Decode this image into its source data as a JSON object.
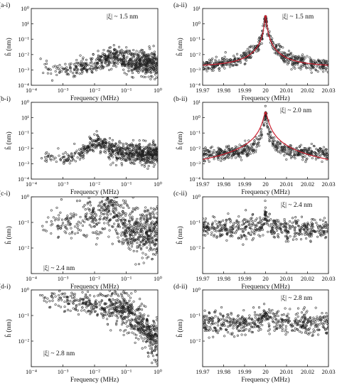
{
  "figure": {
    "x_label": "Frequency (MHz)",
    "y_label": "ĥ (nm)"
  },
  "chart_data": [
    {
      "panel": "(a-i)",
      "type": "scatter",
      "annotation": "|ξ| ~ 1.5 nm",
      "xlabel": "Frequency (MHz)",
      "ylabel": "ĥ (nm)",
      "x_scale": "log",
      "y_scale": "log",
      "xlim": [
        0.0001,
        1
      ],
      "ylim": [
        0.0001,
        10
      ],
      "x_ticks": [
        "10⁻⁴",
        "10⁻³",
        "10⁻²",
        "10⁻¹",
        "10⁰"
      ],
      "y_ticks": [
        "10⁰",
        "10¹",
        "10⁻¹",
        "10⁻²",
        "10⁻³",
        "10⁻⁴"
      ],
      "trend": {
        "x": [
          0.00025,
          0.001,
          0.003,
          0.01,
          0.02,
          0.035,
          0.05,
          0.1,
          0.3,
          1
        ],
        "y": [
          0.0015,
          0.0009,
          0.0012,
          0.0022,
          0.004,
          0.007,
          0.0065,
          0.004,
          0.003,
          0.0025
        ]
      },
      "spread_decades": 0.35,
      "density": "sparse-to-dense"
    },
    {
      "panel": "(a-ii)",
      "type": "scatter+line",
      "annotation": "|ξ| ~ 1.5 nm",
      "xlabel": "Frequency (MHz)",
      "ylabel": "ĥ (nm)",
      "x_scale": "linear",
      "y_scale": "log",
      "xlim": [
        19.97,
        20.03
      ],
      "ylim": [
        0.0001,
        10
      ],
      "x_ticks": [
        "19.97",
        "19.98",
        "19.99",
        "20",
        "20.01",
        "20.02",
        "20.03"
      ],
      "y_ticks": [
        "10¹",
        "10⁰",
        "10⁻¹",
        "10⁻²",
        "10⁻³",
        "10⁻⁴"
      ],
      "resonance": {
        "center": 20.0,
        "peak": 3.0,
        "baseline": 0.0015,
        "gamma": 0.0004
      },
      "fit_series": {
        "name": "",
        "color": "#cc2030",
        "peak": 3.0,
        "baseline": 0.0015,
        "gamma": 0.0004
      }
    },
    {
      "panel": "(b-i)",
      "type": "scatter",
      "annotation": "",
      "xlabel": "Frequency (MHz)",
      "ylabel": "ĥ (nm)",
      "x_scale": "log",
      "y_scale": "log",
      "xlim": [
        0.0001,
        1
      ],
      "ylim": [
        0.0001,
        10
      ],
      "x_ticks": [
        "10⁻⁴",
        "10⁻³",
        "10⁻²",
        "10⁻¹",
        "10⁰"
      ],
      "y_ticks": [
        "10⁰",
        "10¹",
        "10⁻¹",
        "10⁻²",
        "10⁻³",
        "10⁻⁴"
      ],
      "trend": {
        "x": [
          0.0002,
          0.001,
          0.003,
          0.006,
          0.01,
          0.013,
          0.02,
          0.05,
          0.1,
          1
        ],
        "y": [
          0.0025,
          0.0022,
          0.004,
          0.01,
          0.025,
          0.03,
          0.015,
          0.006,
          0.005,
          0.0045
        ]
      },
      "spread_decades": 0.3,
      "density": "sparse-to-dense"
    },
    {
      "panel": "(b-ii)",
      "type": "scatter+line",
      "annotation": "|ξ| ~ 2.0 nm",
      "xlabel": "Frequency (MHz)",
      "ylabel": "ĥ (nm)",
      "x_scale": "linear",
      "y_scale": "log",
      "xlim": [
        19.97,
        20.03
      ],
      "ylim": [
        0.0001,
        10
      ],
      "x_ticks": [
        "19.97",
        "19.98",
        "19.99",
        "20",
        "20.01",
        "20.02",
        "20.03"
      ],
      "y_ticks": [
        "10¹",
        "10⁰",
        "10⁻¹",
        "10⁻²",
        "10⁻³",
        "10⁻⁴"
      ],
      "resonance": {
        "center": 20.0,
        "peak": 2.0,
        "baseline": 0.004,
        "gamma": 0.0004
      },
      "fit_series": {
        "name": "",
        "color": "#cc2030",
        "peak": 2.0,
        "baseline": 0.0001,
        "gamma": 0.0009
      }
    },
    {
      "panel": "(c-i)",
      "type": "scatter",
      "annotation": "|ξ| ~ 2.4 nm",
      "xlabel": "Frequency (MHz)",
      "ylabel": "ĥ (nm)",
      "x_scale": "log",
      "y_scale": "log",
      "xlim": [
        0.0001,
        1
      ],
      "ylim": [
        0.001,
        1
      ],
      "x_ticks": [
        "10⁻⁴",
        "10⁻³",
        "10⁻²",
        "10⁻¹",
        "10⁰"
      ],
      "y_ticks": [
        "10⁰",
        "10⁻¹",
        "10⁻²"
      ],
      "trend": {
        "x": [
          0.0002,
          0.001,
          0.003,
          0.01,
          0.02,
          0.04,
          0.06,
          0.1,
          1
        ],
        "y": [
          0.08,
          0.1,
          0.1,
          0.15,
          0.25,
          0.4,
          0.15,
          0.05,
          0.04
        ]
      },
      "spread_decades": 0.45,
      "density": "sparse-to-dense"
    },
    {
      "panel": "(c-ii)",
      "type": "scatter",
      "annotation": "|ξ| ~ 2.4 nm",
      "xlabel": "Frequency (MHz)",
      "ylabel": "ĥ (nm)",
      "x_scale": "linear",
      "y_scale": "log",
      "xlim": [
        19.97,
        20.03
      ],
      "ylim": [
        0.001,
        1
      ],
      "x_ticks": [
        "19.97",
        "19.98",
        "19.99",
        "20",
        "20.01",
        "20.02",
        "20.03"
      ],
      "y_ticks": [
        "10⁰",
        "10⁻¹",
        "10⁻²"
      ],
      "resonance": {
        "center": 20.0,
        "peak": 0.25,
        "baseline": 0.06,
        "gamma": 0.0003
      }
    },
    {
      "panel": "(d-i)",
      "type": "scatter",
      "annotation": "|ξ| ~ 2.8 nm",
      "xlabel": "Frequency (MHz)",
      "ylabel": "ĥ (nm)",
      "x_scale": "log",
      "y_scale": "log",
      "xlim": [
        0.0001,
        1
      ],
      "ylim": [
        0.001,
        1
      ],
      "x_ticks": [
        "10⁻⁴",
        "10⁻³",
        "10⁻²",
        "10⁻¹",
        "10⁰"
      ],
      "y_ticks": [
        "10⁰",
        "10⁻¹",
        "10⁻²"
      ],
      "trend": {
        "x": [
          0.0002,
          0.001,
          0.003,
          0.01,
          0.03,
          0.1,
          0.2,
          0.4,
          0.6,
          1
        ],
        "y": [
          0.45,
          0.45,
          0.35,
          0.3,
          0.2,
          0.15,
          0.07,
          0.03,
          0.015,
          0.01
        ]
      },
      "spread_decades": 0.35,
      "density": "sparse-to-dense"
    },
    {
      "panel": "(d-ii)",
      "type": "scatter",
      "annotation": "|ξ| ~ 2.8 nm",
      "xlabel": "Frequency (MHz)",
      "ylabel": "ĥ (nm)",
      "x_scale": "linear",
      "y_scale": "log",
      "xlim": [
        19.97,
        20.03
      ],
      "ylim": [
        0.001,
        1
      ],
      "x_ticks": [
        "19.97",
        "19.98",
        "19.99",
        "20",
        "20.01",
        "20.02",
        "20.03"
      ],
      "y_ticks": [
        "10⁰",
        "10⁻¹",
        "10⁻²"
      ],
      "resonance": {
        "center": 20.0,
        "peak": 0.12,
        "baseline": 0.05,
        "gamma": 0.0015
      }
    }
  ]
}
